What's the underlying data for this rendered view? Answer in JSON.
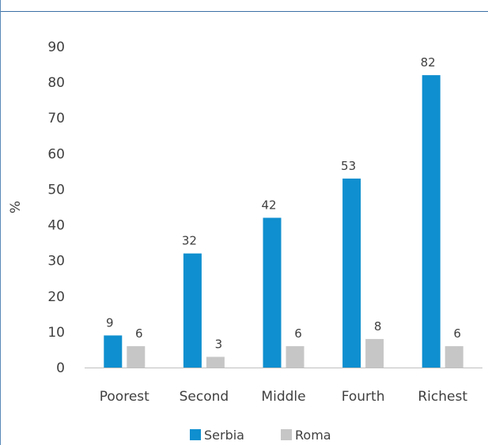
{
  "chart_data": {
    "type": "bar",
    "categories": [
      "Poorest",
      "Second",
      "Middle",
      "Fourth",
      "Richest"
    ],
    "series": [
      {
        "name": "Serbia",
        "values": [
          9,
          32,
          42,
          53,
          82
        ],
        "color": "#0f8fcf"
      },
      {
        "name": "Roma",
        "values": [
          6,
          3,
          6,
          8,
          6
        ],
        "color": "#c6c6c6"
      }
    ],
    "ylabel": "%",
    "ylim": [
      0,
      90
    ],
    "yticks": [
      0,
      10,
      20,
      30,
      40,
      50,
      60,
      70,
      80,
      90
    ],
    "grid": false,
    "legend_position": "bottom"
  }
}
